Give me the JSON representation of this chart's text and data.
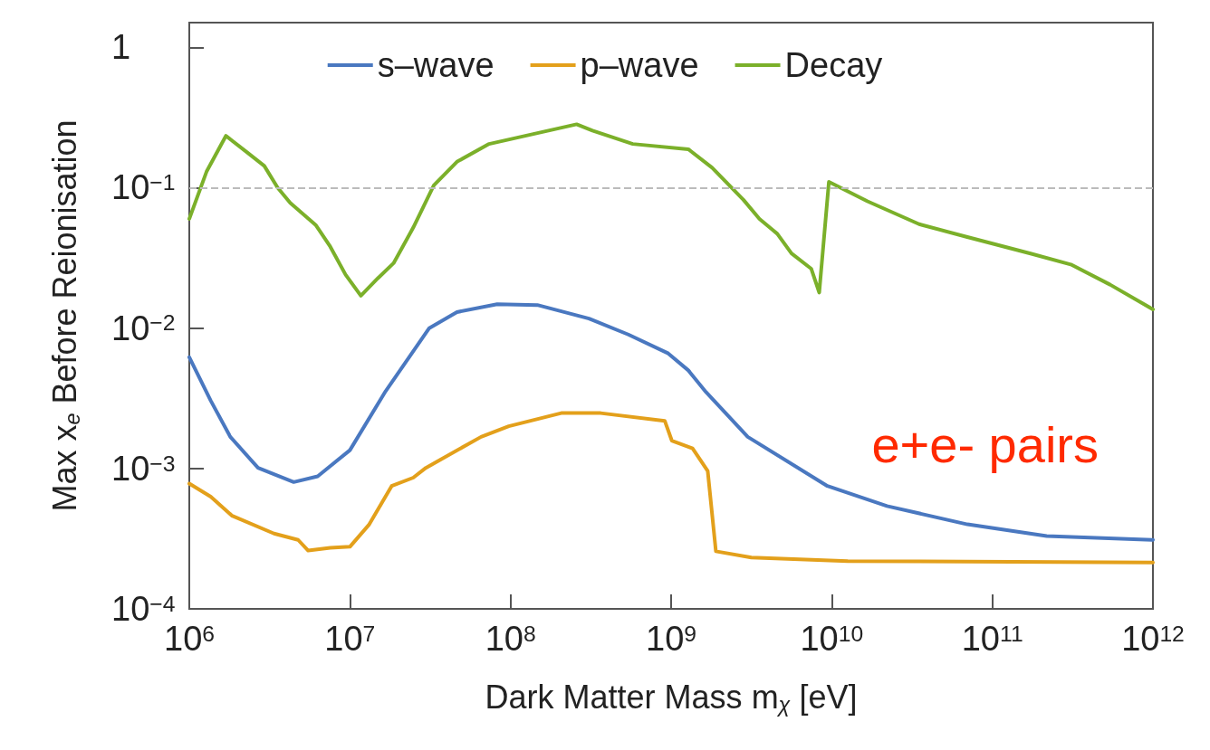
{
  "chart_data": {
    "type": "line",
    "xlabel": "Dark Matter Mass m$_{χ}$ [eV]",
    "ylabel": "Max x$_{e}$ Before Reionisation",
    "log": "xy",
    "xlim": [
      1000000,
      1000000000000
    ],
    "ylim": [
      0.0001,
      1.5
    ],
    "xticks": [
      {
        "value": 1000000,
        "label": "10$^{6}$"
      },
      {
        "value": 10000000,
        "label": "10$^{7}$"
      },
      {
        "value": 100000000,
        "label": "10$^{8}$"
      },
      {
        "value": 1000000000,
        "label": "10$^{9}$"
      },
      {
        "value": 10000000000,
        "label": "10$^{10}$"
      },
      {
        "value": 100000000000,
        "label": "10$^{11}$"
      },
      {
        "value": 1000000000000,
        "label": "10$^{12}$"
      }
    ],
    "yticks": [
      {
        "value": 0.0001,
        "label": "10$^{−4}$"
      },
      {
        "value": 0.001,
        "label": "10$^{−3}$"
      },
      {
        "value": 0.01,
        "label": "10$^{−2}$"
      },
      {
        "value": 0.1,
        "label": "10$^{−1}$"
      },
      1
    ],
    "legend": "top",
    "grid": false,
    "line_style": "solid",
    "marker": "none",
    "ref_lines": [
      {
        "axis": "y",
        "value": 0.1,
        "color": "#bbbbbb",
        "line_style": "dashed"
      }
    ],
    "annotations": [
      "e+e- pairs"
    ],
    "series": [
      {
        "name": "s–wave",
        "color": "#4a78c0",
        "x": [
          1000000,
          1360000,
          1800000,
          2680000,
          4470000,
          6300000,
          10000000,
          16700000,
          31200000,
          46400000,
          82600000,
          147000000,
          308000000,
          541000000,
          960000000,
          1280000000,
          1650000000,
          3000000000,
          9400000000,
          22100000000,
          70000000000,
          218000000000,
          1000000000000
        ],
        "values": [
          0.0062,
          0.00304,
          0.00168,
          0.00101,
          0.0008,
          0.00088,
          0.00135,
          0.00356,
          0.01,
          0.013,
          0.0148,
          0.0146,
          0.0117,
          0.009,
          0.0066,
          0.005,
          0.0035,
          0.00168,
          0.00075,
          0.00054,
          0.0004,
          0.00033,
          0.00031
        ]
      },
      {
        "name": "p–wave",
        "color": "#e3a01b",
        "x": [
          1000000,
          1360000,
          1850000,
          3370000,
          4760000,
          5500000,
          7550000,
          10000000,
          13200000,
          18200000,
          24800000,
          29700000,
          65600000,
          97500000,
          207000000,
          364000000,
          914000000,
          1010000000,
          1360000000,
          1690000000,
          1900000000,
          3160000000,
          12600000000,
          1000000000000
        ],
        "values": [
          0.00078,
          0.00063,
          0.00046,
          0.000344,
          0.00031,
          0.00026,
          0.000272,
          0.000277,
          0.0004,
          0.00075,
          0.00086,
          0.00101,
          0.00168,
          0.002,
          0.00248,
          0.00248,
          0.00218,
          0.00158,
          0.00139,
          0.00096,
          0.000257,
          0.000232,
          0.000219,
          0.000214
        ]
      },
      {
        "name": "Decay",
        "color": "#7bb02a",
        "x": [
          1000000,
          1280000,
          1690000,
          2270000,
          2930000,
          3550000,
          4250000,
          6150000,
          7550000,
          9400000,
          11700000,
          14900000,
          18700000,
          24800000,
          33300000,
          46400000,
          73600000,
          258000000,
          324000000,
          577000000,
          1280000000,
          1800000000,
          2820000000,
          3550000000,
          4580000000,
          5620000000,
          7450000000,
          8360000000,
          9600000000,
          16700000000,
          35000000000,
          69000000000,
          173000000000,
          308000000000,
          541000000000,
          1000000000000
        ],
        "values": [
          0.06,
          0.13,
          0.234,
          0.18,
          0.143,
          0.1,
          0.078,
          0.054,
          0.038,
          0.024,
          0.017,
          0.0226,
          0.029,
          0.052,
          0.104,
          0.153,
          0.205,
          0.283,
          0.255,
          0.205,
          0.188,
          0.139,
          0.082,
          0.06,
          0.047,
          0.034,
          0.0265,
          0.0179,
          0.11,
          0.08,
          0.055,
          0.0447,
          0.034,
          0.0284,
          0.0204,
          0.0136
        ]
      }
    ]
  }
}
